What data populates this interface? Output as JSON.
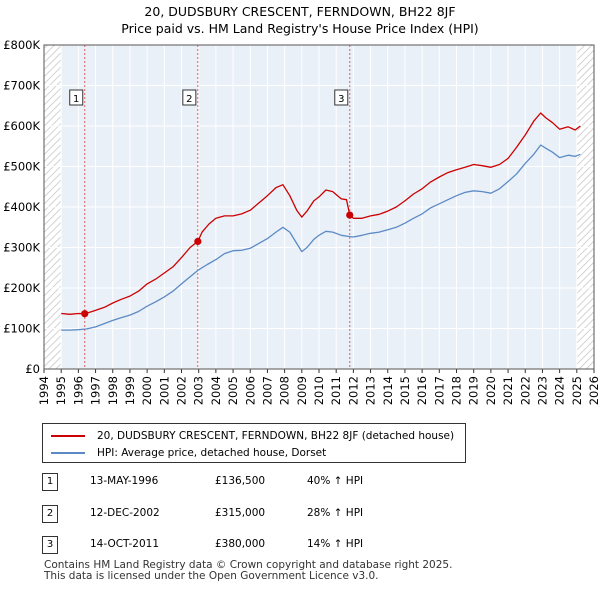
{
  "chart_data": {
    "type": "line",
    "title": "20, DUDSBURY CRESCENT, FERNDOWN, BH22 8JF",
    "subtitle": "Price paid vs. HM Land Registry's House Price Index (HPI)",
    "xlabel": "",
    "ylabel": "",
    "xlim": [
      1994,
      2026
    ],
    "ylim": [
      0,
      800000
    ],
    "x_ticks": [
      "1994",
      "1995",
      "1996",
      "1997",
      "1998",
      "1999",
      "2000",
      "2001",
      "2002",
      "2003",
      "2004",
      "2005",
      "2006",
      "2007",
      "2008",
      "2009",
      "2010",
      "2011",
      "2012",
      "2013",
      "2014",
      "2015",
      "2016",
      "2017",
      "2018",
      "2019",
      "2020",
      "2021",
      "2022",
      "2023",
      "2024",
      "2025",
      "2026"
    ],
    "y_ticks": [
      {
        "value": 0,
        "label": "£0"
      },
      {
        "value": 100000,
        "label": "£100K"
      },
      {
        "value": 200000,
        "label": "£200K"
      },
      {
        "value": 300000,
        "label": "£300K"
      },
      {
        "value": 400000,
        "label": "£400K"
      },
      {
        "value": 500000,
        "label": "£500K"
      },
      {
        "value": 600000,
        "label": "£600K"
      },
      {
        "value": 700000,
        "label": "£700K"
      },
      {
        "value": 800000,
        "label": "£800K"
      }
    ],
    "grid": true,
    "series": [
      {
        "name": "20, DUDSBURY CRESCENT, FERNDOWN, BH22 8JF (detached house)",
        "color": "#cc0000",
        "x": [
          1995.0,
          1995.5,
          1996.0,
          1996.37,
          1996.8,
          1997.5,
          1998.0,
          1998.5,
          1999.0,
          1999.5,
          2000.0,
          2000.5,
          2001.0,
          2001.5,
          2002.0,
          2002.5,
          2002.95,
          2003.2,
          2003.6,
          2004.0,
          2004.5,
          2005.0,
          2005.5,
          2006.0,
          2006.5,
          2007.0,
          2007.5,
          2007.9,
          2008.3,
          2008.7,
          2009.0,
          2009.3,
          2009.7,
          2010.0,
          2010.4,
          2010.8,
          2011.3,
          2011.6,
          2011.79,
          2012.0,
          2012.5,
          2013.0,
          2013.5,
          2014.0,
          2014.5,
          2015.0,
          2015.5,
          2016.0,
          2016.5,
          2017.0,
          2017.5,
          2018.0,
          2018.5,
          2019.0,
          2019.5,
          2020.0,
          2020.5,
          2021.0,
          2021.5,
          2022.0,
          2022.5,
          2022.9,
          2023.2,
          2023.6,
          2024.0,
          2024.5,
          2024.9,
          2025.2
        ],
        "values": [
          137000,
          135000,
          137000,
          136500,
          142000,
          152000,
          163000,
          172000,
          180000,
          192000,
          210000,
          222000,
          237000,
          252000,
          275000,
          300000,
          315000,
          338000,
          358000,
          372000,
          378000,
          378000,
          383000,
          392000,
          410000,
          428000,
          448000,
          455000,
          428000,
          392000,
          375000,
          390000,
          415000,
          425000,
          442000,
          438000,
          420000,
          418000,
          380000,
          372000,
          372000,
          378000,
          382000,
          390000,
          400000,
          415000,
          432000,
          445000,
          462000,
          474000,
          485000,
          492000,
          498000,
          505000,
          502000,
          498000,
          505000,
          520000,
          548000,
          578000,
          612000,
          632000,
          620000,
          608000,
          592000,
          598000,
          590000,
          600000
        ]
      },
      {
        "name": "HPI: Average price, detached house, Dorset",
        "color": "#5b8ac5",
        "x": [
          1995.0,
          1995.5,
          1996.0,
          1996.5,
          1997.0,
          1997.5,
          1998.0,
          1998.5,
          1999.0,
          1999.5,
          2000.0,
          2000.5,
          2001.0,
          2001.5,
          2002.0,
          2002.5,
          2003.0,
          2003.5,
          2004.0,
          2004.5,
          2005.0,
          2005.5,
          2006.0,
          2006.5,
          2007.0,
          2007.5,
          2007.9,
          2008.3,
          2008.7,
          2009.0,
          2009.3,
          2009.7,
          2010.0,
          2010.4,
          2010.8,
          2011.3,
          2011.8,
          2012.0,
          2012.5,
          2013.0,
          2013.5,
          2014.0,
          2014.5,
          2015.0,
          2015.5,
          2016.0,
          2016.5,
          2017.0,
          2017.5,
          2018.0,
          2018.5,
          2019.0,
          2019.5,
          2020.0,
          2020.5,
          2021.0,
          2021.5,
          2022.0,
          2022.5,
          2022.9,
          2023.2,
          2023.6,
          2024.0,
          2024.5,
          2024.9,
          2025.2
        ],
        "values": [
          96000,
          96000,
          97000,
          99000,
          104000,
          112000,
          120000,
          127000,
          133000,
          142000,
          155000,
          166000,
          178000,
          192000,
          210000,
          228000,
          245000,
          258000,
          270000,
          285000,
          292000,
          293000,
          298000,
          310000,
          322000,
          338000,
          350000,
          338000,
          310000,
          290000,
          300000,
          320000,
          330000,
          340000,
          338000,
          330000,
          327000,
          326000,
          330000,
          335000,
          338000,
          344000,
          350000,
          360000,
          372000,
          383000,
          398000,
          408000,
          418000,
          428000,
          436000,
          440000,
          438000,
          434000,
          445000,
          463000,
          482000,
          508000,
          530000,
          553000,
          545000,
          535000,
          522000,
          528000,
          525000,
          530000
        ]
      }
    ],
    "sales": [
      {
        "num": "1",
        "x": 1996.37,
        "value": 136500
      },
      {
        "num": "2",
        "x": 2002.95,
        "value": 315000
      },
      {
        "num": "3",
        "x": 2011.79,
        "value": 380000
      }
    ],
    "shade_before": 1995.0,
    "shade_after": 2025.0
  },
  "legend": {
    "property_label": "20, DUDSBURY CRESCENT, FERNDOWN, BH22 8JF (detached house)",
    "hpi_label": "HPI: Average price, detached house, Dorset",
    "property_color": "#cc0000",
    "hpi_color": "#5b8ac5"
  },
  "sales_table": [
    {
      "num": "1",
      "date": "13-MAY-1996",
      "price": "£136,500",
      "hpi": "40% ↑ HPI"
    },
    {
      "num": "2",
      "date": "12-DEC-2002",
      "price": "£315,000",
      "hpi": "28% ↑ HPI"
    },
    {
      "num": "3",
      "date": "14-OCT-2011",
      "price": "£380,000",
      "hpi": "14% ↑ HPI"
    }
  ],
  "footer": {
    "line1": "Contains HM Land Registry data © Crown copyright and database right 2025.",
    "line2": "This data is licensed under the Open Government Licence v3.0."
  }
}
